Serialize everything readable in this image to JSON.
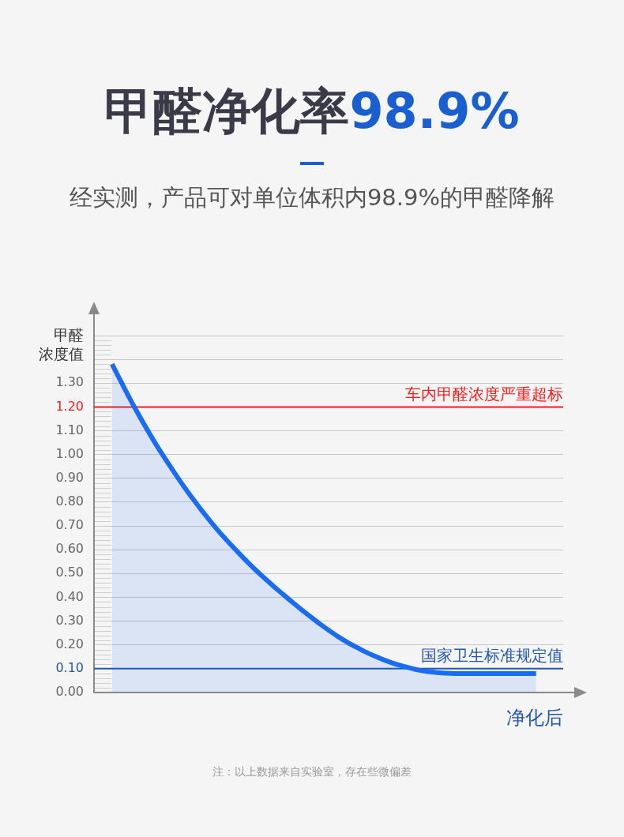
{
  "chart_data": {
    "type": "area",
    "title": "甲醛净化率98.9%",
    "subtitle": "经实测，产品可对单位体积内98.9%的甲醛降解",
    "xlabel": "净化后",
    "ylabel": "甲醛浓度值",
    "annotations": [
      "注：以上数据来自实验室，存在些微偏差"
    ],
    "categories": [
      null,
      null,
      null,
      null,
      null,
      null,
      null,
      null,
      null,
      null,
      null,
      null,
      null,
      null,
      null,
      null,
      null,
      null,
      null,
      null,
      null,
      null,
      null,
      null,
      null,
      null,
      null,
      null,
      null,
      null,
      null,
      null,
      null,
      null,
      null,
      null,
      null,
      null,
      null,
      null,
      null,
      null,
      null,
      null,
      null,
      null,
      null,
      null,
      null,
      null,
      null,
      null,
      null
    ],
    "values": [
      null,
      null,
      1.38,
      1.306,
      1.233,
      1.164,
      1.098,
      1.035,
      0.976,
      0.919,
      0.864,
      0.812,
      0.762,
      0.715,
      0.67,
      0.628,
      0.588,
      0.549,
      0.512,
      0.477,
      0.443,
      0.411,
      0.379,
      0.348,
      0.318,
      0.289,
      0.262,
      0.236,
      0.213,
      0.192,
      0.172,
      0.155,
      0.139,
      0.125,
      0.113,
      0.103,
      0.094,
      0.088,
      0.084,
      0.081,
      0.08,
      0.08,
      0.08,
      0.08,
      0.08,
      0.08,
      0.08,
      0.08,
      0.08,
      0.08,
      null,
      null,
      null
    ],
    "color": "#1a6cf5",
    "ylim": [
      0,
      1.5
    ],
    "yticks": [
      {
        "value": 0,
        "label": "0.00"
      },
      {
        "value": 0.1,
        "label": "0.10"
      },
      {
        "value": 0.2,
        "label": "0.20"
      },
      {
        "value": 0.3,
        "label": "0.30"
      },
      {
        "value": 0.4,
        "label": "0.40"
      },
      {
        "value": 0.5,
        "label": "0.50"
      },
      {
        "value": 0.6,
        "label": "0.60"
      },
      {
        "value": 0.7,
        "label": "0.70"
      },
      {
        "value": 0.8,
        "label": "0.80"
      },
      {
        "value": 0.9,
        "label": "0.90"
      },
      {
        "value": 1,
        "label": "1.00"
      },
      {
        "value": 1.1,
        "label": "1.10"
      },
      {
        "value": 1.2,
        "label": "1.20"
      },
      {
        "value": 1.3,
        "label": "1.30"
      },
      {
        "value": 1.4,
        "label": null
      },
      {
        "value": 1.5,
        "label": null
      }
    ],
    "ref_lines": [
      {
        "axis": "y",
        "value": 1.2,
        "label": "车内甲醛浓度严重超标",
        "color": "#ff1a1a"
      },
      {
        "axis": "y",
        "value": 0.1,
        "label": "国家卫生标准规定值",
        "color": "#2356b0"
      }
    ],
    "grid": "y"
  }
}
